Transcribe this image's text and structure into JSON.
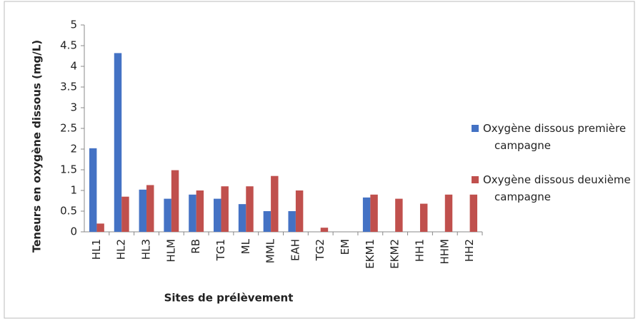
{
  "chart_data": {
    "type": "bar",
    "y_label": "Teneurs en oxygène dissous (mg/L)",
    "x_label": "Sites de prélèvement",
    "categories": [
      "HL1",
      "HL2",
      "HL3",
      "HLM",
      "RB",
      "TG1",
      "ML",
      "MML",
      "EAH",
      "TG2",
      "EM",
      "EKM1",
      "EKM2",
      "HH1",
      "HHM",
      "HH2"
    ],
    "series": [
      {
        "name": "Oxygène dissous première campagne",
        "color": "#4472c4",
        "values": [
          2.02,
          4.32,
          1.02,
          0.8,
          0.9,
          0.8,
          0.67,
          0.5,
          0.5,
          0,
          0,
          0.83,
          0,
          0,
          0,
          0
        ]
      },
      {
        "name": "Oxygène dissous deuxième campagne",
        "color": "#c0504d",
        "values": [
          0.2,
          0.85,
          1.13,
          1.49,
          1.0,
          1.1,
          1.1,
          1.35,
          1.0,
          0.1,
          0,
          0.9,
          0.8,
          0.68,
          0.9,
          0.9
        ]
      }
    ],
    "ylim": [
      0,
      5
    ],
    "yticks": [
      0,
      0.5,
      1,
      1.5,
      2,
      2.5,
      3,
      3.5,
      4,
      4.5,
      5
    ],
    "grid": false
  }
}
